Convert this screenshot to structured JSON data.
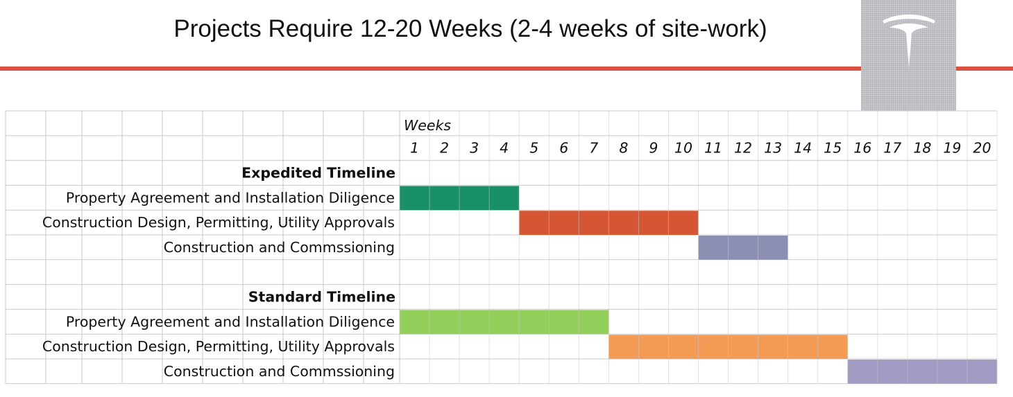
{
  "title": "Projects Require 12-20 Weeks (2-4 weeks of site-work)",
  "colors": {
    "accent_rule": "#d9503f",
    "grid": "#c9c9c9",
    "logo_background": "#c8c9ce",
    "logo_mark": "#ffffff"
  },
  "logo": {
    "icon": "tesla-logo-icon"
  },
  "chart_data": {
    "type": "gantt",
    "axis_label": "Weeks",
    "weeks": [
      "1",
      "2",
      "3",
      "4",
      "5",
      "6",
      "7",
      "8",
      "9",
      "10",
      "11",
      "12",
      "13",
      "14",
      "15",
      "16",
      "17",
      "18",
      "19",
      "20"
    ],
    "rows": [
      {
        "label": "Expedited Timeline",
        "header": true
      },
      {
        "label": "Property Agreement and Installation Diligence",
        "start_week": 1,
        "end_week": 4,
        "color": "#1a9068"
      },
      {
        "label": "Construction Design, Permitting, Utility Approvals",
        "start_week": 5,
        "end_week": 10,
        "color": "#d55632"
      },
      {
        "label": "Construction and Commssioning",
        "start_week": 11,
        "end_week": 13,
        "color": "#8c8fb2"
      },
      {
        "label": "",
        "spacer": true
      },
      {
        "label": "Standard Timeline",
        "header": true
      },
      {
        "label": "Property Agreement and Installation Diligence",
        "start_week": 1,
        "end_week": 7,
        "color": "#93cf5b"
      },
      {
        "label": "Construction Design, Permitting, Utility Approvals",
        "start_week": 8,
        "end_week": 15,
        "color": "#f39a55"
      },
      {
        "label": "Construction and Commssioning",
        "start_week": 16,
        "end_week": 20,
        "color": "#a29bc3"
      }
    ]
  }
}
